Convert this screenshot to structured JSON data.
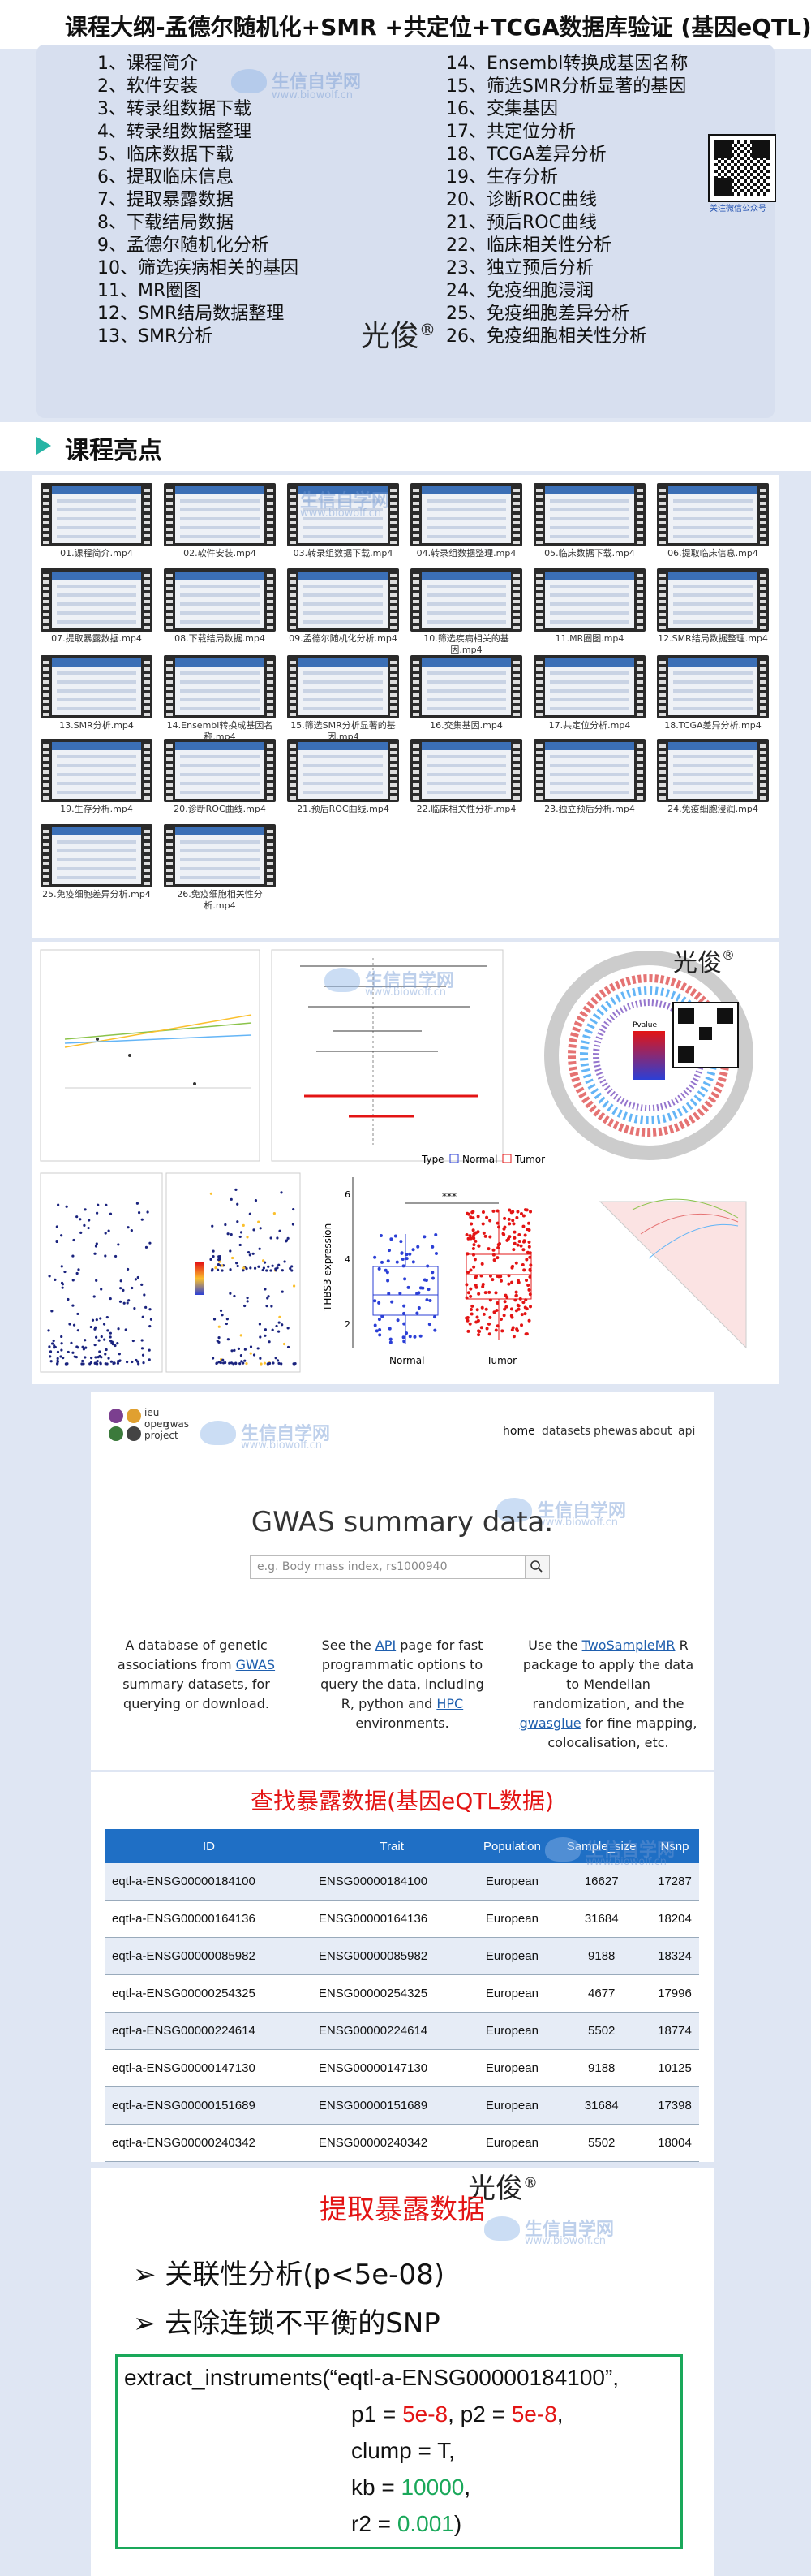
{
  "header": {
    "title": "课程大纲-孟德尔随机化+SMR +共定位+TCGA数据库验证 (基因eQTL)"
  },
  "outline": {
    "left": [
      "1、课程简介",
      "2、软件安装",
      "3、转录组数据下载",
      "4、转录组数据整理",
      "5、临床数据下载",
      "6、提取临床信息",
      "7、提取暴露数据",
      "8、下载结局数据",
      "9、孟德尔随机化分析",
      "10、筛选疾病相关的基因",
      "11、MR圈图",
      "12、SMR结局数据整理",
      "13、SMR分析"
    ],
    "right": [
      "14、Ensembl转换成基因名称",
      "15、筛选SMR分析显著的基因",
      "16、交集基因",
      "17、共定位分析",
      "18、TCGA差异分析",
      "19、生存分析",
      "20、诊断ROC曲线",
      "21、预后ROC曲线",
      "22、临床相关性分析",
      "23、独立预后分析",
      "24、免疫细胞浸润",
      "25、免疫细胞差异分析",
      "26、免疫细胞相关性分析"
    ],
    "author": "光俊",
    "reg": "®",
    "qr_caption": "关注微信公众号"
  },
  "watermark": {
    "cn": "生信自学网",
    "url": "www.biowolf.cn"
  },
  "section2": {
    "title": "课程亮点"
  },
  "videos": [
    "01.课程简介.mp4",
    "02.软件安装.mp4",
    "03.转录组数据下载.mp4",
    "04.转录组数据整理.mp4",
    "05.临床数据下载.mp4",
    "06.提取临床信息.mp4",
    "07.提取暴露数据.mp4",
    "08.下载结局数据.mp4",
    "09.孟德尔随机化分析.mp4",
    "10.筛选疾病相关的基因.mp4",
    "11.MR圈图.mp4",
    "12.SMR结局数据整理.mp4",
    "13.SMR分析.mp4",
    "14.Ensembl转换成基因名称.mp4",
    "15.筛选SMR分析显著的基因.mp4",
    "16.交集基因.mp4",
    "17.共定位分析.mp4",
    "18.TCGA差异分析.mp4",
    "19.生存分析.mp4",
    "20.诊断ROC曲线.mp4",
    "21.预后ROC曲线.mp4",
    "22.临床相关性分析.mp4",
    "23.独立预后分析.mp4",
    "24.免疫细胞浸润.mp4",
    "25.免疫细胞差异分析.mp4",
    "26.免疫细胞相关性分析.mp4"
  ],
  "figures": {
    "author": "光俊",
    "reg": "®",
    "boxplot": {
      "ylabel": "THBS3 expression",
      "groups": [
        "Normal",
        "Tumor"
      ],
      "legend_title": "Type",
      "sig": "***",
      "yticks": [
        "6",
        "4",
        "2"
      ],
      "colors": {
        "Normal": "#2b3fd6",
        "Tumor": "#e31414"
      }
    },
    "circos_legend": "Pvalue"
  },
  "gwas": {
    "logo": [
      "ieu",
      "open",
      "gwas",
      "project"
    ],
    "nav": [
      "home",
      "datasets",
      "phewas",
      "about",
      "api"
    ],
    "heading": "GWAS summary data.",
    "search_placeholder": "e.g. Body mass index, rs1000940",
    "col1": {
      "a": "A database of genetic associations from ",
      "link": "GWAS",
      "b": " summary datasets, for querying or download."
    },
    "col2": {
      "a": "See the ",
      "link": "API",
      "b": " page for fast programmatic options to query the data, including R, python and ",
      "link2": "HPC",
      "c": " environments."
    },
    "col3": {
      "a": "Use the ",
      "link": "TwoSampleMR",
      "b": " R package to apply the data to Mendelian randomization, and the ",
      "link2": "gwasglue",
      "c": " for fine mapping, colocalisation, etc."
    }
  },
  "table": {
    "title": "查找暴露数据(基因eQTL数据)",
    "headers": [
      "ID",
      "Trait",
      "Population",
      "Sample_size",
      "Nsnp"
    ],
    "rows": [
      [
        "eqtl-a-ENSG00000184100",
        "ENSG00000184100",
        "European",
        "16627",
        "17287"
      ],
      [
        "eqtl-a-ENSG00000164136",
        "ENSG00000164136",
        "European",
        "31684",
        "18204"
      ],
      [
        "eqtl-a-ENSG00000085982",
        "ENSG00000085982",
        "European",
        "9188",
        "18324"
      ],
      [
        "eqtl-a-ENSG00000254325",
        "ENSG00000254325",
        "European",
        "4677",
        "17996"
      ],
      [
        "eqtl-a-ENSG00000224614",
        "ENSG00000224614",
        "European",
        "5502",
        "18774"
      ],
      [
        "eqtl-a-ENSG00000147130",
        "ENSG00000147130",
        "European",
        "9188",
        "10125"
      ],
      [
        "eqtl-a-ENSG00000151689",
        "ENSG00000151689",
        "European",
        "31684",
        "17398"
      ],
      [
        "eqtl-a-ENSG00000240342",
        "ENSG00000240342",
        "European",
        "5502",
        "18004"
      ]
    ]
  },
  "code": {
    "title": "提取暴露数据",
    "author": "光俊",
    "reg": "®",
    "bullets": [
      "关联性分析(p<5e-08)",
      "去除连锁不平衡的SNP"
    ],
    "line1": "extract_instruments(“eqtl-a-ENSG00000184100”,",
    "p1_label": "p1 = ",
    "p1": "5e-8",
    "sep": ",  ",
    "p2_label": "p2 = ",
    "p2": "5e-8",
    "comma": ",",
    "clump": "clump = T,",
    "kb_label": "kb = ",
    "kb": "10000",
    "r2_label": "r2 = ",
    "r2": "0.001",
    "close": ")"
  }
}
